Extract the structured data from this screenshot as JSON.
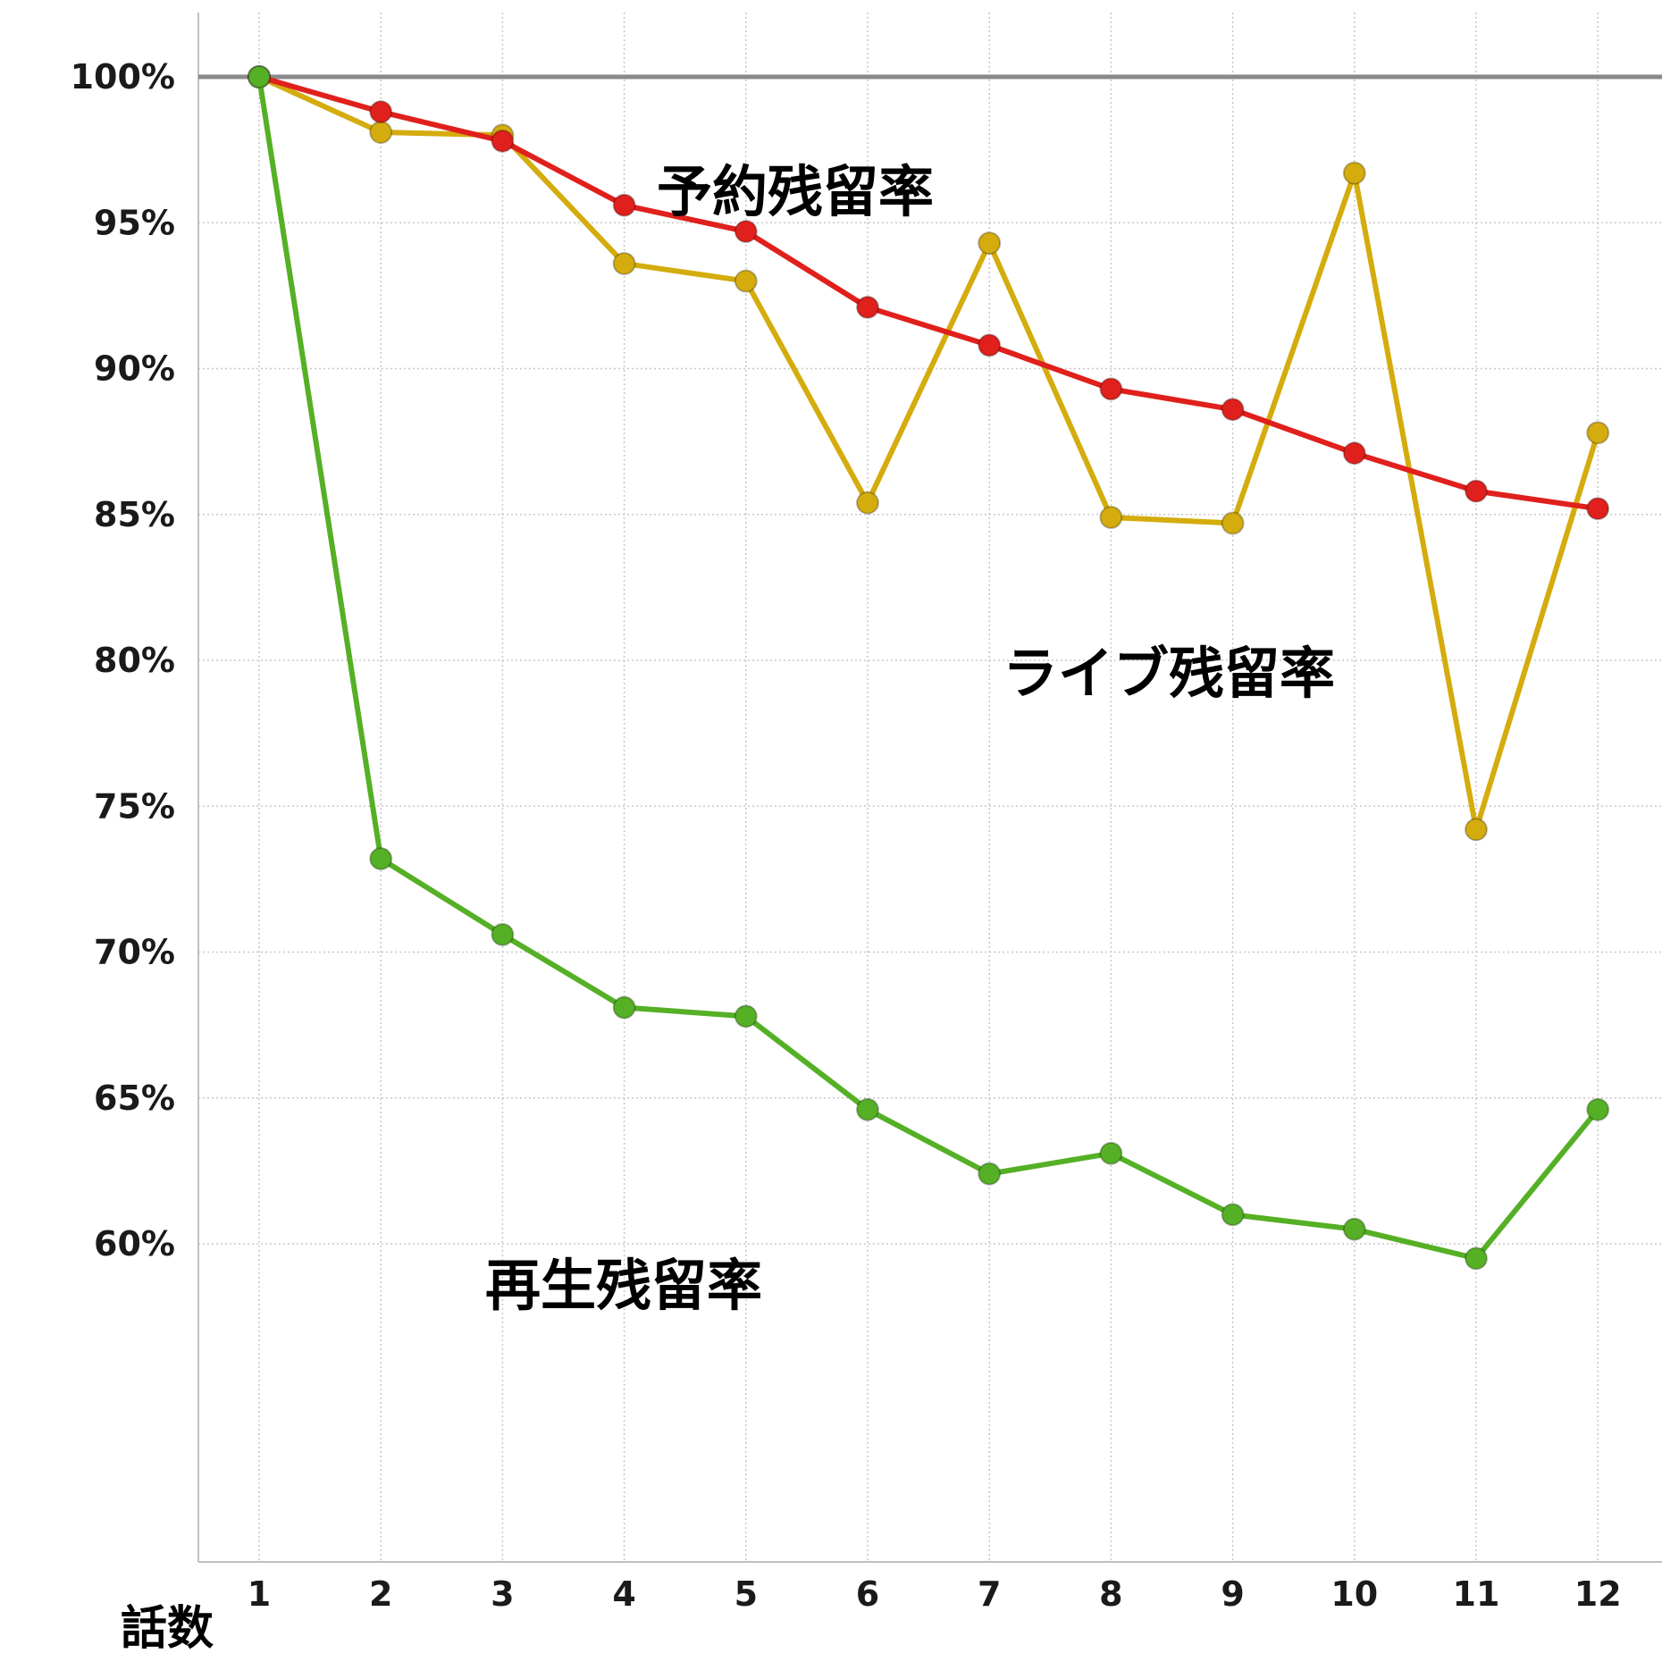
{
  "chart_data": {
    "type": "line",
    "x": [
      1,
      2,
      3,
      4,
      5,
      6,
      7,
      8,
      9,
      10,
      11,
      12
    ],
    "xlabel": "話数",
    "ylabel": "",
    "ylim": [
      58,
      102
    ],
    "yticks": [
      60,
      65,
      70,
      75,
      80,
      85,
      90,
      95,
      100
    ],
    "ytick_labels": [
      "60%",
      "65%",
      "70%",
      "75%",
      "80%",
      "85%",
      "90%",
      "95%",
      "100%"
    ],
    "reference_line": 100,
    "grid": true,
    "series": [
      {
        "name": "ライブ残留率",
        "color": "#d4ac0d",
        "values": [
          100,
          98.1,
          98.0,
          93.6,
          93.0,
          85.4,
          94.3,
          84.9,
          84.7,
          96.7,
          74.2,
          87.8
        ]
      },
      {
        "name": "予約残留率",
        "color": "#e0201c",
        "values": [
          100,
          98.8,
          97.8,
          95.6,
          94.7,
          92.1,
          90.8,
          89.3,
          88.6,
          87.1,
          85.8,
          85.2
        ]
      },
      {
        "name": "再生残留率",
        "color": "#55b025",
        "values": [
          100,
          73.2,
          70.6,
          68.1,
          67.8,
          64.6,
          62.4,
          63.1,
          61.0,
          60.5,
          59.5,
          64.6
        ]
      }
    ]
  }
}
